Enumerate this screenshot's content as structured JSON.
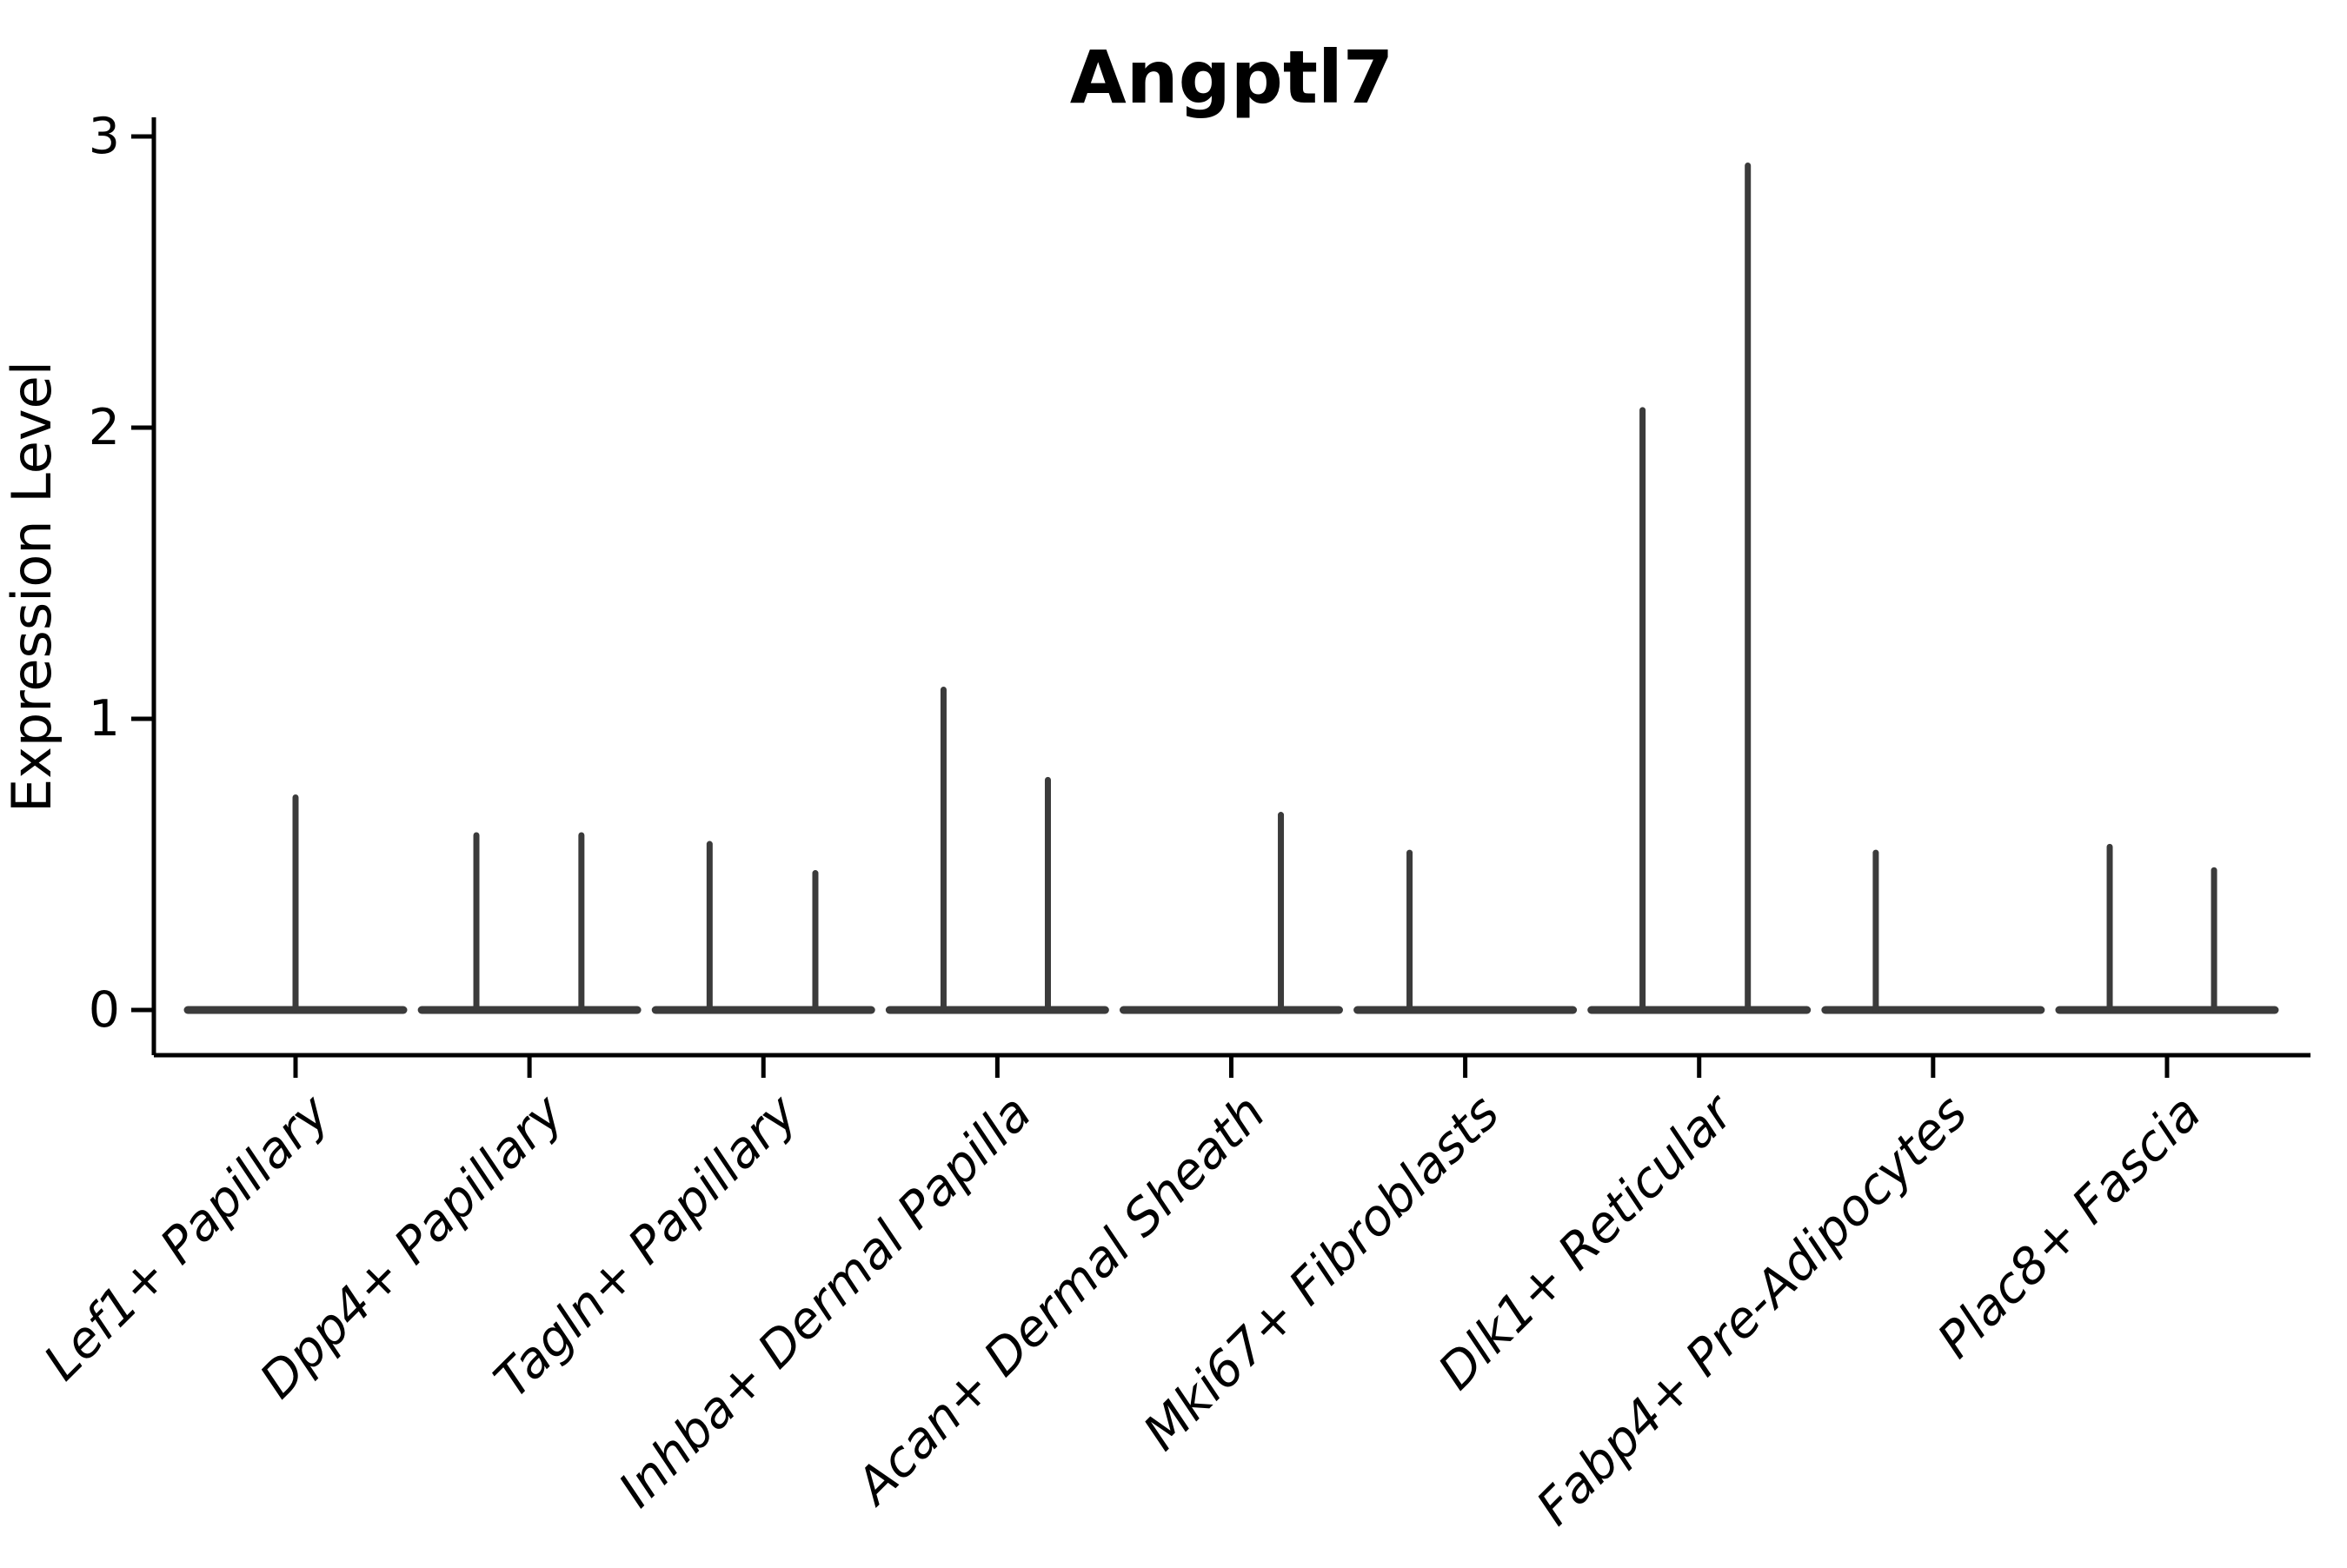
{
  "figure": {
    "title": "Angptl7"
  },
  "chart_data": {
    "type": "violin",
    "title": "Angptl7",
    "xlabel": "",
    "ylabel": "Expression Level",
    "ylim": [
      0,
      3.07
    ],
    "yticks": [
      0,
      1,
      2,
      3
    ],
    "grid": false,
    "legend": "none",
    "background": "#ffffff",
    "categories": [
      "Lef1+ Papillary",
      "Dpp4+ Papillary",
      "Tagln+ Papillary",
      "Inhba+ Dermal Papilla",
      "Acan+ Dermal Sheath",
      "Mki67+ Fibroblasts",
      "Dlk1+ Reticular",
      "Fabp4+ Pre-Adipocytes",
      "Plac8+ Fascia"
    ],
    "violins": [
      {
        "category": "Lef1+ Papillary",
        "zero_mass": true,
        "spikes": [
          {
            "offset": 0.0,
            "value": 0.73
          }
        ]
      },
      {
        "category": "Dpp4+ Papillary",
        "zero_mass": true,
        "spikes": [
          {
            "offset": -0.227,
            "value": 0.6
          },
          {
            "offset": 0.222,
            "value": 0.6
          }
        ]
      },
      {
        "category": "Tagln+ Papillary",
        "zero_mass": true,
        "spikes": [
          {
            "offset": -0.23,
            "value": 0.57
          },
          {
            "offset": 0.222,
            "value": 0.47
          }
        ]
      },
      {
        "category": "Inhba+ Dermal Papilla",
        "zero_mass": true,
        "spikes": [
          {
            "offset": -0.23,
            "value": 1.1
          },
          {
            "offset": 0.216,
            "value": 0.79
          }
        ]
      },
      {
        "category": "Acan+ Dermal Sheath",
        "zero_mass": true,
        "spikes": [
          {
            "offset": 0.212,
            "value": 0.67
          }
        ]
      },
      {
        "category": "Mki67+ Fibroblasts",
        "zero_mass": true,
        "spikes": [
          {
            "offset": -0.238,
            "value": 0.54
          }
        ]
      },
      {
        "category": "Dlk1+ Reticular",
        "zero_mass": true,
        "spikes": [
          {
            "offset": -0.242,
            "value": 2.06
          },
          {
            "offset": 0.208,
            "value": 2.9
          }
        ]
      },
      {
        "category": "Fabp4+ Pre-Adipocytes",
        "zero_mass": true,
        "spikes": [
          {
            "offset": -0.245,
            "value": 0.54
          }
        ]
      },
      {
        "category": "Plac8+ Fascia",
        "zero_mass": true,
        "spikes": [
          {
            "offset": -0.245,
            "value": 0.56
          },
          {
            "offset": 0.201,
            "value": 0.48
          }
        ]
      }
    ],
    "colors": {
      "violin": "#3b3b3b",
      "axis": "#000000",
      "text": "#000000",
      "background": "#ffffff"
    }
  }
}
